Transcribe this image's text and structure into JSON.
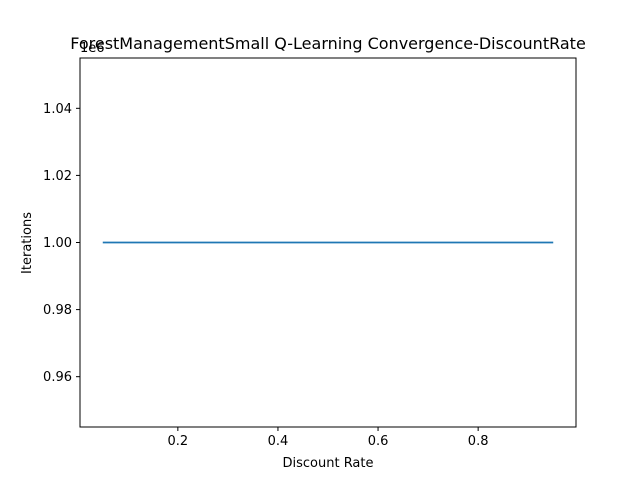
{
  "chart_data": {
    "type": "line",
    "title": "ForestManagementSmall Q-Learning Convergence-DiscountRate",
    "xlabel": "Discount Rate",
    "ylabel": "Iterations",
    "y_offset_label": "1e6",
    "xlim": [
      0.0045,
      0.9955
    ],
    "ylim": [
      0.945,
      1.055
    ],
    "xticks": [
      0.2,
      0.4,
      0.6,
      0.8
    ],
    "xtick_labels": [
      "0.2",
      "0.4",
      "0.6",
      "0.8"
    ],
    "yticks": [
      0.96,
      0.98,
      1.0,
      1.02,
      1.04
    ],
    "ytick_labels": [
      "0.96",
      "0.98",
      "1.00",
      "1.02",
      "1.04"
    ],
    "grid": false,
    "series": [
      {
        "color": "#1f77b4",
        "x": [
          0.05,
          0.15,
          0.25,
          0.35,
          0.45,
          0.55,
          0.65,
          0.75,
          0.85,
          0.95
        ],
        "y": [
          1.0,
          1.0,
          1.0,
          1.0,
          1.0,
          1.0,
          1.0,
          1.0,
          1.0,
          1.0
        ]
      }
    ]
  }
}
